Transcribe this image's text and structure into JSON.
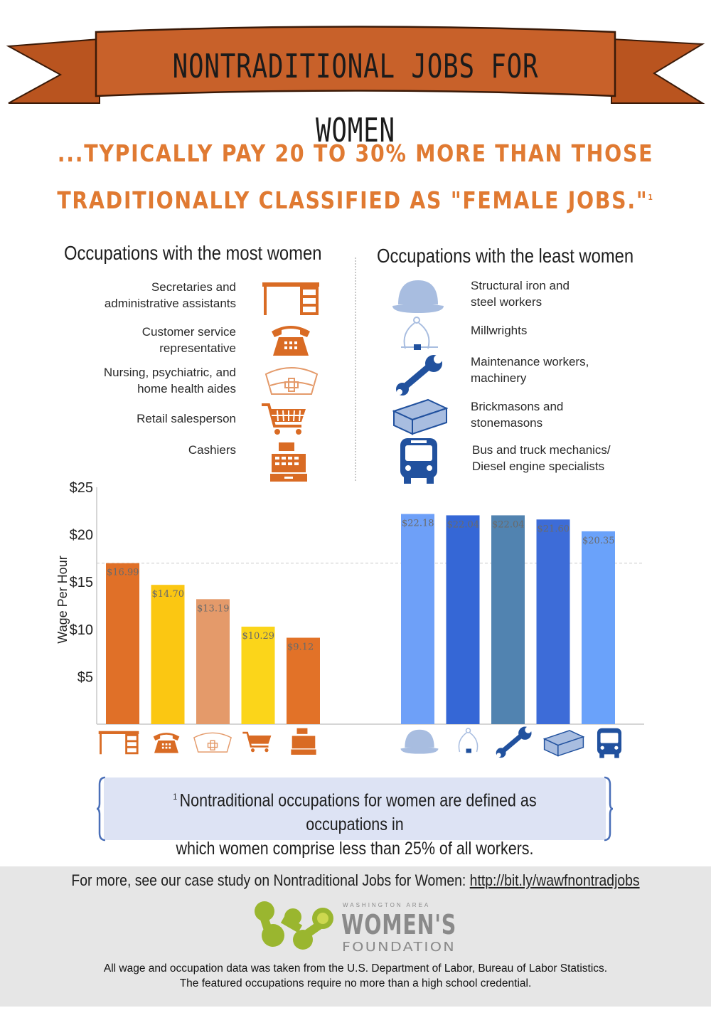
{
  "banner": {
    "title": "NONTRADITIONAL JOBS FOR WOMEN"
  },
  "subheading": {
    "line1": "...TYPICALLY PAY 20 TO 30% MORE THAN THOSE",
    "line2": "TRADITIONALLY CLASSIFIED AS \"FEMALE JOBS.\"",
    "footnote_mark": "1"
  },
  "most_women": {
    "heading": "Occupations with the most women",
    "items": [
      {
        "line1": "Secretaries and",
        "line2": "administrative assistants",
        "icon": "desk-icon"
      },
      {
        "line1": "Customer service",
        "line2": "representative",
        "icon": "telephone-icon"
      },
      {
        "line1": "Nursing, psychiatric, and",
        "line2": "home health aides",
        "icon": "nurse-cap-icon"
      },
      {
        "line1": "Retail  salesperson",
        "line2": "",
        "icon": "shopping-cart-icon"
      },
      {
        "line1": "Cashiers",
        "line2": "",
        "icon": "cash-register-icon"
      }
    ]
  },
  "least_women": {
    "heading": "Occupations with the least women",
    "items": [
      {
        "line1": "Structural iron and",
        "line2": "steel workers",
        "icon": "hard-hat-icon"
      },
      {
        "line1": "Millwrights",
        "line2": "",
        "icon": "caliper-icon"
      },
      {
        "line1": "Maintenance workers,",
        "line2": "machinery",
        "icon": "wrench-icon"
      },
      {
        "line1": "Brickmasons and",
        "line2": "stonemasons",
        "icon": "brick-icon"
      },
      {
        "line1": "Bus and truck mechanics/",
        "line2": "Diesel engine specialists",
        "icon": "bus-icon"
      }
    ]
  },
  "chart_data": {
    "type": "bar",
    "ylabel": "Wage Per Hour",
    "ylim": [
      0,
      25
    ],
    "yticks": [
      5,
      10,
      15,
      20,
      25
    ],
    "ytick_labels": [
      "$5",
      "$10",
      "$15",
      "$20",
      "$25"
    ],
    "reference_line": 16.99,
    "groups": [
      {
        "group": "most_women",
        "categories": [
          "Secretaries and administrative assistants",
          "Customer service representative",
          "Nursing, psychiatric, and home health aides",
          "Retail salesperson",
          "Cashiers"
        ],
        "values": [
          16.99,
          14.7,
          13.19,
          10.29,
          9.12
        ],
        "labels": [
          "$16.99",
          "$14.70",
          "$13.19",
          "$10.29",
          "$9.12"
        ],
        "colors": [
          "#e07028",
          "#fbc712",
          "#e49a6a",
          "#fbd51a",
          "#e27228"
        ],
        "icons": [
          "desk-icon",
          "telephone-icon",
          "nurse-cap-icon",
          "shopping-cart-icon",
          "cash-register-icon"
        ]
      },
      {
        "group": "least_women",
        "categories": [
          "Structural iron and steel workers",
          "Millwrights",
          "Maintenance workers, machinery",
          "Brickmasons and stonemasons",
          "Bus and truck mechanics/Diesel engine specialists"
        ],
        "values": [
          22.18,
          22.04,
          22.04,
          21.6,
          20.35
        ],
        "labels": [
          "$22.18",
          "$22.04",
          "$22.04",
          "$21.60",
          "$20.35"
        ],
        "colors": [
          "#6ea0f8",
          "#3567d6",
          "#5183b0",
          "#3d6cd8",
          "#6aa2fa"
        ],
        "icons": [
          "hard-hat-icon",
          "caliper-icon",
          "wrench-icon",
          "brick-icon",
          "bus-icon"
        ]
      }
    ]
  },
  "footnote": {
    "mark": "1",
    "line1": "Nontraditional occupations for women are defined as occupations in",
    "line2": "which women comprise less than 25% of all workers."
  },
  "footer": {
    "more_text": "For more, see our case study on Nontraditional Jobs for Women: ",
    "link_text": "http://bit.ly/wawfnontradjobs",
    "org_small": "WASHINGTON AREA",
    "org_name": "WOMEN'S",
    "org_sub": "FOUNDATION",
    "source_line1": "All wage and occupation data was taken from the U.S. Department of Labor, Bureau of Labor Statistics.",
    "source_line2": "The featured occupations require no more than a high school credential."
  },
  "colors": {
    "accent_orange": "#e07a32",
    "banner_fill": "#c8612a",
    "icon_orange": "#d96b24",
    "icon_blue": "#21519e",
    "icon_lightblue": "#a8bde0"
  }
}
